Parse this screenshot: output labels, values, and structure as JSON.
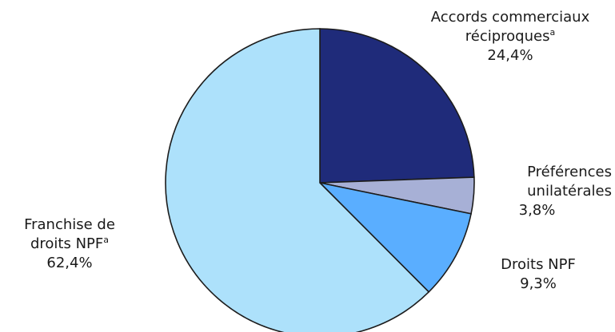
{
  "chart_data": {
    "type": "pie",
    "slices": [
      {
        "label_lines": [
          "Accords commerciaux",
          "réciproques"
        ],
        "footnote": "a",
        "value": 24.4,
        "value_label": "24,4%",
        "color": "#1f2b7a"
      },
      {
        "label_lines": [
          "Préférences",
          "unilatérales"
        ],
        "footnote": "",
        "value": 3.8,
        "value_label": "3,8%",
        "color": "#a7b0d6"
      },
      {
        "label_lines": [
          "Droits NPF"
        ],
        "footnote": "",
        "value": 9.3,
        "value_label": "9,3%",
        "color": "#5aaeff"
      },
      {
        "label_lines": [
          "Franchise de",
          "droits NPF"
        ],
        "footnote": "a",
        "value": 62.4,
        "value_label": "62,4%",
        "color": "#ade1fb"
      }
    ],
    "start_angle": "12 o'clock",
    "direction": "clockwise",
    "legend": "none"
  }
}
